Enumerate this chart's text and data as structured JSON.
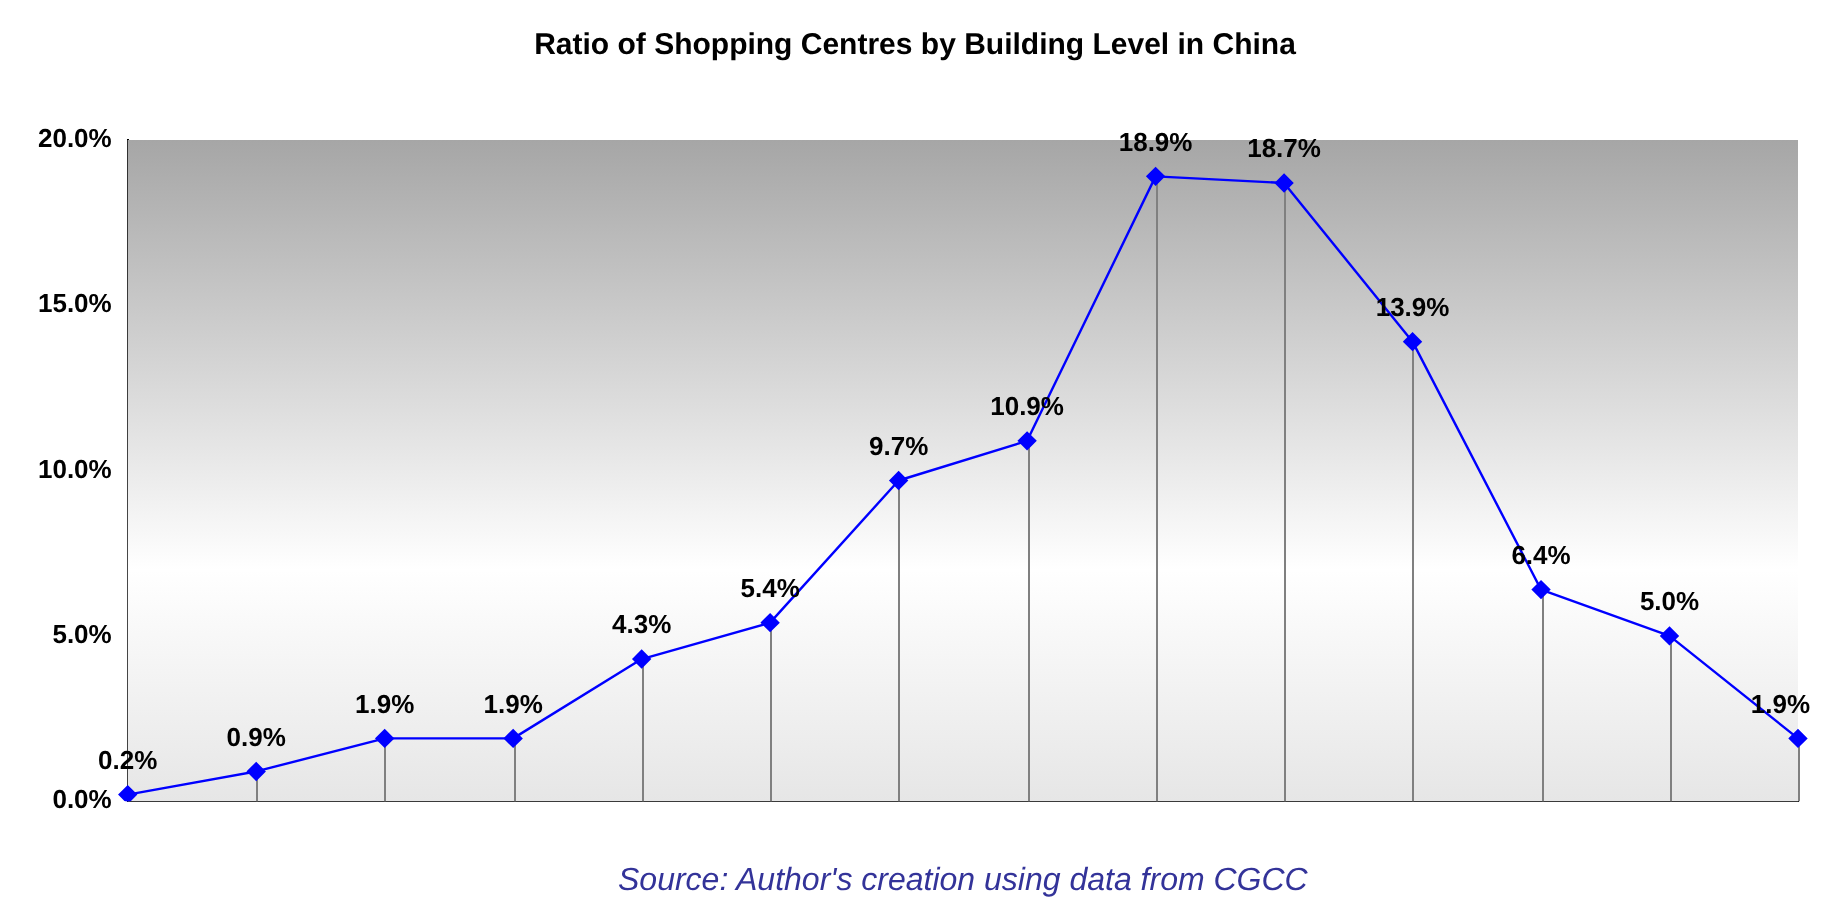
{
  "chart_data": {
    "type": "line",
    "title": "Ratio of Shopping Centres by Building Level in China",
    "categories": [
      null,
      null,
      null,
      null,
      null,
      null,
      null,
      null,
      null,
      null,
      null,
      null,
      null,
      null
    ],
    "series": [
      {
        "color": "#0000ff",
        "values": [
          0.2,
          0.9,
          1.9,
          1.9,
          4.3,
          5.4,
          9.7,
          10.9,
          18.9,
          18.7,
          13.9,
          6.4,
          5.0,
          1.9
        ],
        "value_labels": [
          "0.2%",
          "0.9%",
          "1.9%",
          "1.9%",
          "4.3%",
          "5.4%",
          "9.7%",
          "10.9%",
          "18.9%",
          "18.7%",
          "13.9%",
          "6.4%",
          "5.0%",
          "1.9%"
        ]
      }
    ],
    "ylim": [
      0,
      20
    ],
    "yticks": [
      {
        "value": 0,
        "label": "0.0%"
      },
      {
        "value": 5,
        "label": "5.0%"
      },
      {
        "value": 10,
        "label": "10.0%"
      },
      {
        "value": 15,
        "label": "15.0%"
      },
      {
        "value": 20,
        "label": "20.0%"
      }
    ],
    "grid": false,
    "legend": false,
    "marker": "diamond",
    "line_style": "solid",
    "annotations": [
      "Source: Author's creation using data from CGCC"
    ]
  }
}
